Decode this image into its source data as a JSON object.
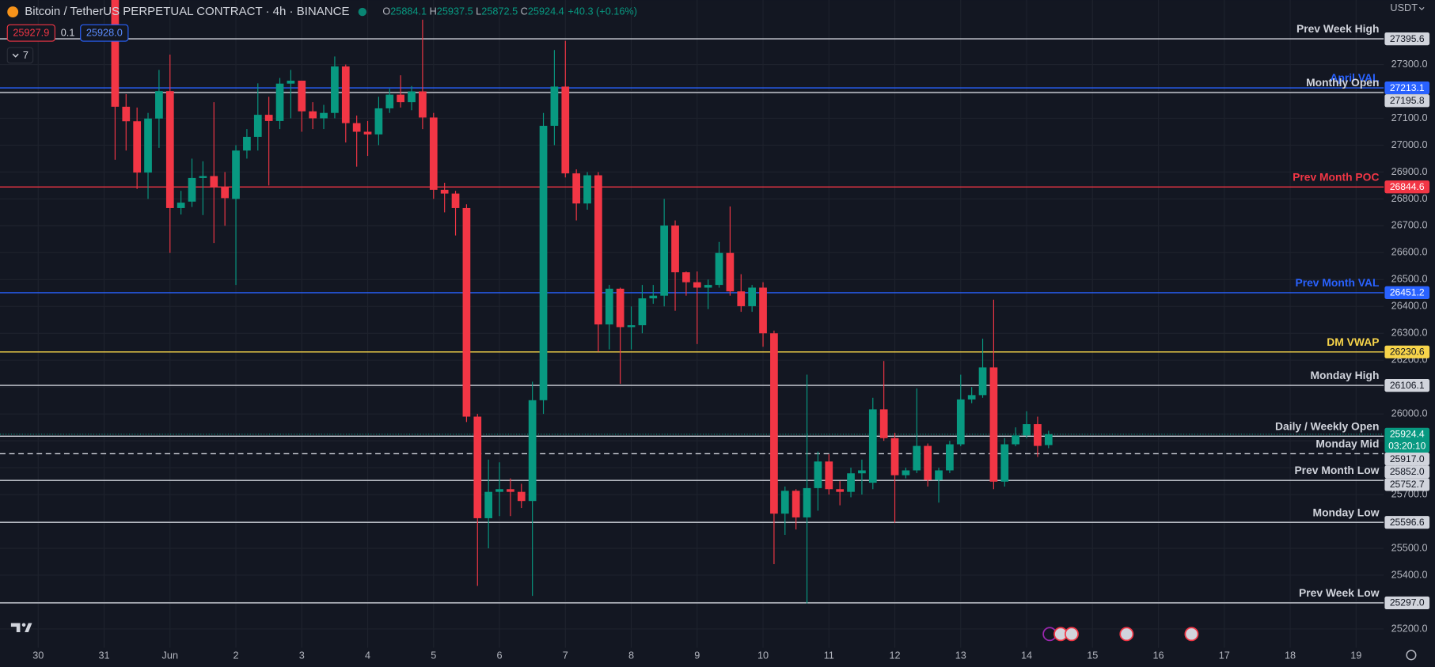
{
  "chart_data": {
    "type": "candlestick",
    "title": "Bitcoin / TetherUS PERPETUAL CONTRACT · 4h · BINANCE",
    "ohlc_letters": [
      "O",
      "H",
      "L",
      "C"
    ],
    "change": "+40.3 (+0.16%)",
    "quote": {
      "bid": "25927.9",
      "spread": "0.1",
      "ask": "25928.0"
    },
    "indicators_count": "7",
    "currency": "USDT",
    "countdown": "03:20:10",
    "up_color": "#089981",
    "down_color": "#f23645",
    "grid": true,
    "xlim": [
      -0.58,
      20.42
    ],
    "xticks": [
      {
        "value": 0,
        "label": "30"
      },
      {
        "value": 1,
        "label": "31"
      },
      {
        "value": 2,
        "label": "Jun"
      },
      {
        "value": 3,
        "label": "2"
      },
      {
        "value": 4,
        "label": "3"
      },
      {
        "value": 5,
        "label": "4"
      },
      {
        "value": 6,
        "label": "5"
      },
      {
        "value": 7,
        "label": "6"
      },
      {
        "value": 8,
        "label": "7"
      },
      {
        "value": 9,
        "label": "8"
      },
      {
        "value": 10,
        "label": "9"
      },
      {
        "value": 11,
        "label": "10"
      },
      {
        "value": 12,
        "label": "11"
      },
      {
        "value": 13,
        "label": "12"
      },
      {
        "value": 14,
        "label": "13"
      },
      {
        "value": 15,
        "label": "14"
      },
      {
        "value": 16,
        "label": "15"
      },
      {
        "value": 17,
        "label": "16"
      },
      {
        "value": 18,
        "label": "17"
      },
      {
        "value": 19,
        "label": "18"
      },
      {
        "value": 20,
        "label": "19"
      }
    ],
    "ylim": [
      25130,
      27540
    ],
    "yticks": [
      {
        "value": 25200,
        "label": "25200.0"
      },
      {
        "value": 25300,
        "label": "25300.0"
      },
      {
        "value": 25400,
        "label": "25400.0"
      },
      {
        "value": 25500,
        "label": "25500.0"
      },
      {
        "value": 25600,
        "label": "25600.0"
      },
      {
        "value": 25700,
        "label": "25700.0"
      },
      {
        "value": 25800,
        "label": "25800.0"
      },
      {
        "value": 25900,
        "label": "25900.0"
      },
      {
        "value": 26000,
        "label": "26000.0"
      },
      {
        "value": 26100,
        "label": "26100.0"
      },
      {
        "value": 26200,
        "label": "26200.0"
      },
      {
        "value": 26300,
        "label": "26300.0"
      },
      {
        "value": 26400,
        "label": "26400.0"
      },
      {
        "value": 26500,
        "label": "26500.0"
      },
      {
        "value": 26600,
        "label": "26600.0"
      },
      {
        "value": 26700,
        "label": "26700.0"
      },
      {
        "value": 26800,
        "label": "26800.0"
      },
      {
        "value": 26900,
        "label": "26900.0"
      },
      {
        "value": 27000,
        "label": "27000.0"
      },
      {
        "value": 27100,
        "label": "27100.0"
      },
      {
        "value": 27200,
        "label": "27200.0"
      },
      {
        "value": 27300,
        "label": "27300.0"
      }
    ],
    "x": [
      1.1667,
      1.3333,
      1.5,
      1.6667,
      1.8333,
      2,
      2.1667,
      2.3333,
      2.5,
      2.6667,
      2.8333,
      3,
      3.1667,
      3.3333,
      3.5,
      3.6667,
      3.8333,
      4,
      4.1667,
      4.3333,
      4.5,
      4.6667,
      4.8333,
      5,
      5.1667,
      5.3333,
      5.5,
      5.6667,
      5.8333,
      6,
      6.1667,
      6.3333,
      6.5,
      6.6667,
      6.8333,
      7,
      7.1667,
      7.3333,
      7.5,
      7.6667,
      7.8333,
      8,
      8.1667,
      8.3333,
      8.5,
      8.6667,
      8.8333,
      9,
      9.1667,
      9.3333,
      9.5,
      9.6667,
      9.8333,
      10,
      10.1667,
      10.3333,
      10.5,
      10.6667,
      10.8333,
      11,
      11.1667,
      11.3333,
      11.5,
      11.6667,
      11.8333,
      12,
      12.1667,
      12.3333,
      12.5,
      12.6667,
      12.8333,
      13,
      13.1667,
      13.3333,
      13.5,
      13.6667,
      13.8333,
      14,
      14.1667,
      14.3333,
      14.5,
      14.6667,
      14.8333,
      15,
      15.1667,
      15.3333
    ],
    "open": [
      27560,
      27143,
      27089,
      26898,
      27099,
      27201,
      26766,
      26790,
      26878,
      26885,
      26844,
      26800,
      26980,
      27031,
      27113,
      27090,
      27229,
      27240,
      27126,
      27100,
      27120,
      27293,
      27082,
      27050,
      27040,
      27137,
      27188,
      27160,
      27200,
      27103,
      26834,
      26820,
      26766,
      25990,
      25612,
      25710,
      25720,
      25710,
      25676,
      26051,
      27072,
      27218,
      26895,
      26783,
      26888,
      26333,
      26466,
      26323,
      26330,
      26430,
      26440,
      26701,
      26527,
      26490,
      26470,
      26480,
      26599,
      26456,
      26401,
      26470,
      26300,
      25629,
      25714,
      25615,
      25724,
      25823,
      25720,
      25710,
      25779,
      25744,
      26017,
      25910,
      25772,
      25790,
      25881,
      25754,
      25790,
      25887,
      26054,
      26070,
      26173,
      25748,
      25887,
      25920,
      25962,
      25884.1
    ],
    "high": [
      27620,
      27190,
      27140,
      27120,
      27280,
      27337,
      26830,
      26950,
      26940,
      27160,
      26900,
      27000,
      27060,
      27230,
      27180,
      27250,
      27280,
      27240,
      27160,
      27150,
      27330,
      27300,
      27110,
      27090,
      27180,
      27210,
      27260,
      27220,
      27467,
      27120,
      26860,
      26830,
      26780,
      26000,
      25830,
      25820,
      25760,
      25740,
      26120,
      27120,
      27354,
      27388,
      26910,
      26900,
      26900,
      26480,
      26470,
      26400,
      26480,
      26480,
      26800,
      26720,
      26530,
      26530,
      26500,
      26640,
      26772,
      26520,
      26480,
      26490,
      26310,
      25730,
      25720,
      26146,
      25860,
      25850,
      25750,
      25800,
      25830,
      26060,
      26197,
      25930,
      25800,
      26095,
      25890,
      25800,
      25900,
      26146,
      26100,
      26280,
      26425,
      25910,
      25950,
      26010,
      25990,
      25937.5
    ],
    "low": [
      26946,
      26980,
      26837,
      26800,
      26990,
      26599,
      26742,
      26770,
      26740,
      26636,
      26700,
      26480,
      26950,
      26980,
      26850,
      27060,
      27100,
      27050,
      27060,
      27060,
      27100,
      27010,
      26920,
      26960,
      27000,
      27120,
      27140,
      27130,
      27060,
      26800,
      26750,
      26664,
      25970,
      25360,
      25500,
      25620,
      25620,
      25650,
      25323,
      26000,
      27000,
      26880,
      26720,
      26760,
      26231,
      26240,
      26112,
      26240,
      26300,
      26410,
      26400,
      26384,
      26440,
      26260,
      26390,
      26470,
      26440,
      26380,
      26380,
      26250,
      25441,
      25550,
      25570,
      25295,
      25640,
      25700,
      25660,
      25690,
      25700,
      25720,
      25900,
      25595,
      25760,
      25780,
      25730,
      25670,
      25780,
      25880,
      26040,
      26060,
      25720,
      25730,
      25880,
      25910,
      25840,
      25872.5
    ],
    "close": [
      27143,
      27089,
      26898,
      27099,
      27201,
      26766,
      26786,
      26878,
      26885,
      26844,
      26803,
      26980,
      27031,
      27113,
      27090,
      27229,
      27240,
      27126,
      27100,
      27120,
      27293,
      27082,
      27050,
      27040,
      27137,
      27188,
      27160,
      27200,
      27103,
      26834,
      26820,
      26766,
      25990,
      25612,
      25710,
      25720,
      25710,
      25676,
      26051,
      27072,
      27218,
      26895,
      26783,
      26888,
      26333,
      26466,
      26323,
      26330,
      26430,
      26440,
      26701,
      26527,
      26490,
      26470,
      26480,
      26599,
      26456,
      26401,
      26470,
      26300,
      25629,
      25714,
      25615,
      25724,
      25823,
      25720,
      25710,
      25779,
      25790,
      26017,
      25910,
      25772,
      25790,
      25881,
      25754,
      25790,
      25887,
      26054,
      26070,
      26173,
      25748,
      25887,
      25920,
      25962,
      25881,
      25924.4
    ],
    "levels": [
      {
        "name": "Prev Week High",
        "value": 27395.6,
        "value_label": "27395.6",
        "color": "#d1d4dc",
        "dashed": false
      },
      {
        "name": "April VAL",
        "value": 27213.1,
        "value_label": "27213.1",
        "color": "#2962ff",
        "dashed": false
      },
      {
        "name": "Monthly Open",
        "value": 27195.8,
        "value_label": "27195.8",
        "color": "#d1d4dc",
        "dashed": false
      },
      {
        "name": "Prev Month POC",
        "value": 26844.6,
        "value_label": "26844.6",
        "color": "#f23645",
        "dashed": false
      },
      {
        "name": "Prev Month VAL",
        "value": 26451.2,
        "value_label": "26451.2",
        "color": "#2962ff",
        "dashed": false
      },
      {
        "name": "DM VWAP",
        "value": 26230.6,
        "value_label": "26230.6",
        "color": "#f7d44a",
        "dashed": false
      },
      {
        "name": "Monday High",
        "value": 26106.1,
        "value_label": "26106.1",
        "color": "#d1d4dc",
        "dashed": false
      },
      {
        "name": "Daily / Weekly Open",
        "value": 25917,
        "value_label": "25917.0",
        "color": "#d1d4dc",
        "dashed": false
      },
      {
        "name": "Monday Mid",
        "value": 25852,
        "value_label": "25852.0",
        "color": "#d1d4dc",
        "dashed": true
      },
      {
        "name": "Prev Month Low",
        "value": 25752.7,
        "value_label": "25752.7",
        "color": "#d1d4dc",
        "dashed": false
      },
      {
        "name": "Monday Low",
        "value": 25596.6,
        "value_label": "25596.6",
        "color": "#d1d4dc",
        "dashed": false
      },
      {
        "name": "Prev Week Low",
        "value": 25297,
        "value_label": "25297.0",
        "color": "#d1d4dc",
        "dashed": false
      }
    ]
  }
}
